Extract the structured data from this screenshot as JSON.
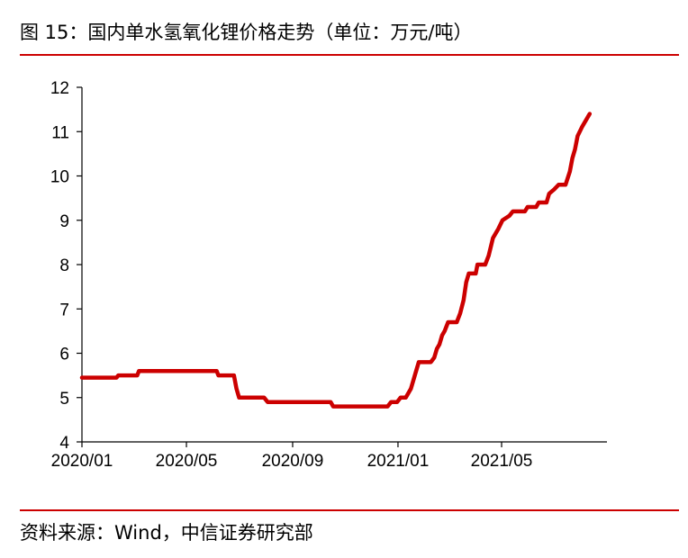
{
  "header": {
    "title": "图 15：国内单水氢氧化锂价格走势（单位：万元/吨）"
  },
  "footer": {
    "source": "资料来源：Wind，中信证券研究部"
  },
  "colors": {
    "accent": "#cc0000",
    "axis": "#000000"
  },
  "chart_data": {
    "type": "line",
    "title": "",
    "xlabel": "",
    "ylabel": "",
    "ylim": [
      4,
      12
    ],
    "grid": false,
    "yticks": [
      4,
      5,
      6,
      7,
      8,
      9,
      10,
      11,
      12
    ],
    "xticks": [
      {
        "label": "2020/01",
        "x": "2020-01-01"
      },
      {
        "label": "2020/05",
        "x": "2020-05-01"
      },
      {
        "label": "2020/09",
        "x": "2020-09-01"
      },
      {
        "label": "2021/01",
        "x": "2021-01-01"
      },
      {
        "label": "2021/05",
        "x": "2021-05-01"
      }
    ],
    "xrange": [
      "2020-01-01",
      "2021-08-31"
    ],
    "series": [
      {
        "name": "",
        "color": "#cc0000",
        "points": [
          [
            "2020-01-01",
            5.45
          ],
          [
            "2020-02-10",
            5.45
          ],
          [
            "2020-02-12",
            5.5
          ],
          [
            "2020-03-05",
            5.5
          ],
          [
            "2020-03-07",
            5.6
          ],
          [
            "2020-06-05",
            5.6
          ],
          [
            "2020-06-07",
            5.5
          ],
          [
            "2020-06-25",
            5.5
          ],
          [
            "2020-06-28",
            5.2
          ],
          [
            "2020-07-01",
            5.0
          ],
          [
            "2020-07-30",
            5.0
          ],
          [
            "2020-08-03",
            4.9
          ],
          [
            "2020-10-15",
            4.9
          ],
          [
            "2020-10-18",
            4.8
          ],
          [
            "2020-12-20",
            4.8
          ],
          [
            "2020-12-24",
            4.9
          ],
          [
            "2020-12-31",
            4.9
          ],
          [
            "2021-01-04",
            5.0
          ],
          [
            "2021-01-10",
            5.0
          ],
          [
            "2021-01-13",
            5.1
          ],
          [
            "2021-01-16",
            5.2
          ],
          [
            "2021-01-19",
            5.4
          ],
          [
            "2021-01-22",
            5.6
          ],
          [
            "2021-01-25",
            5.8
          ],
          [
            "2021-02-08",
            5.8
          ],
          [
            "2021-02-12",
            5.9
          ],
          [
            "2021-02-15",
            6.1
          ],
          [
            "2021-02-18",
            6.2
          ],
          [
            "2021-02-21",
            6.4
          ],
          [
            "2021-02-24",
            6.5
          ],
          [
            "2021-02-28",
            6.7
          ],
          [
            "2021-03-10",
            6.7
          ],
          [
            "2021-03-14",
            6.9
          ],
          [
            "2021-03-18",
            7.2
          ],
          [
            "2021-03-21",
            7.6
          ],
          [
            "2021-03-24",
            7.8
          ],
          [
            "2021-04-01",
            7.8
          ],
          [
            "2021-04-03",
            8.0
          ],
          [
            "2021-04-12",
            8.0
          ],
          [
            "2021-04-16",
            8.2
          ],
          [
            "2021-04-21",
            8.6
          ],
          [
            "2021-04-27",
            8.8
          ],
          [
            "2021-05-02",
            9.0
          ],
          [
            "2021-05-10",
            9.1
          ],
          [
            "2021-05-14",
            9.2
          ],
          [
            "2021-05-28",
            9.2
          ],
          [
            "2021-05-31",
            9.3
          ],
          [
            "2021-06-10",
            9.3
          ],
          [
            "2021-06-13",
            9.4
          ],
          [
            "2021-06-22",
            9.4
          ],
          [
            "2021-06-25",
            9.6
          ],
          [
            "2021-07-01",
            9.7
          ],
          [
            "2021-07-06",
            9.8
          ],
          [
            "2021-07-14",
            9.8
          ],
          [
            "2021-07-19",
            10.1
          ],
          [
            "2021-07-22",
            10.4
          ],
          [
            "2021-07-25",
            10.6
          ],
          [
            "2021-07-28",
            10.9
          ],
          [
            "2021-08-02",
            11.1
          ],
          [
            "2021-08-08",
            11.3
          ],
          [
            "2021-08-11",
            11.4
          ]
        ]
      }
    ]
  }
}
